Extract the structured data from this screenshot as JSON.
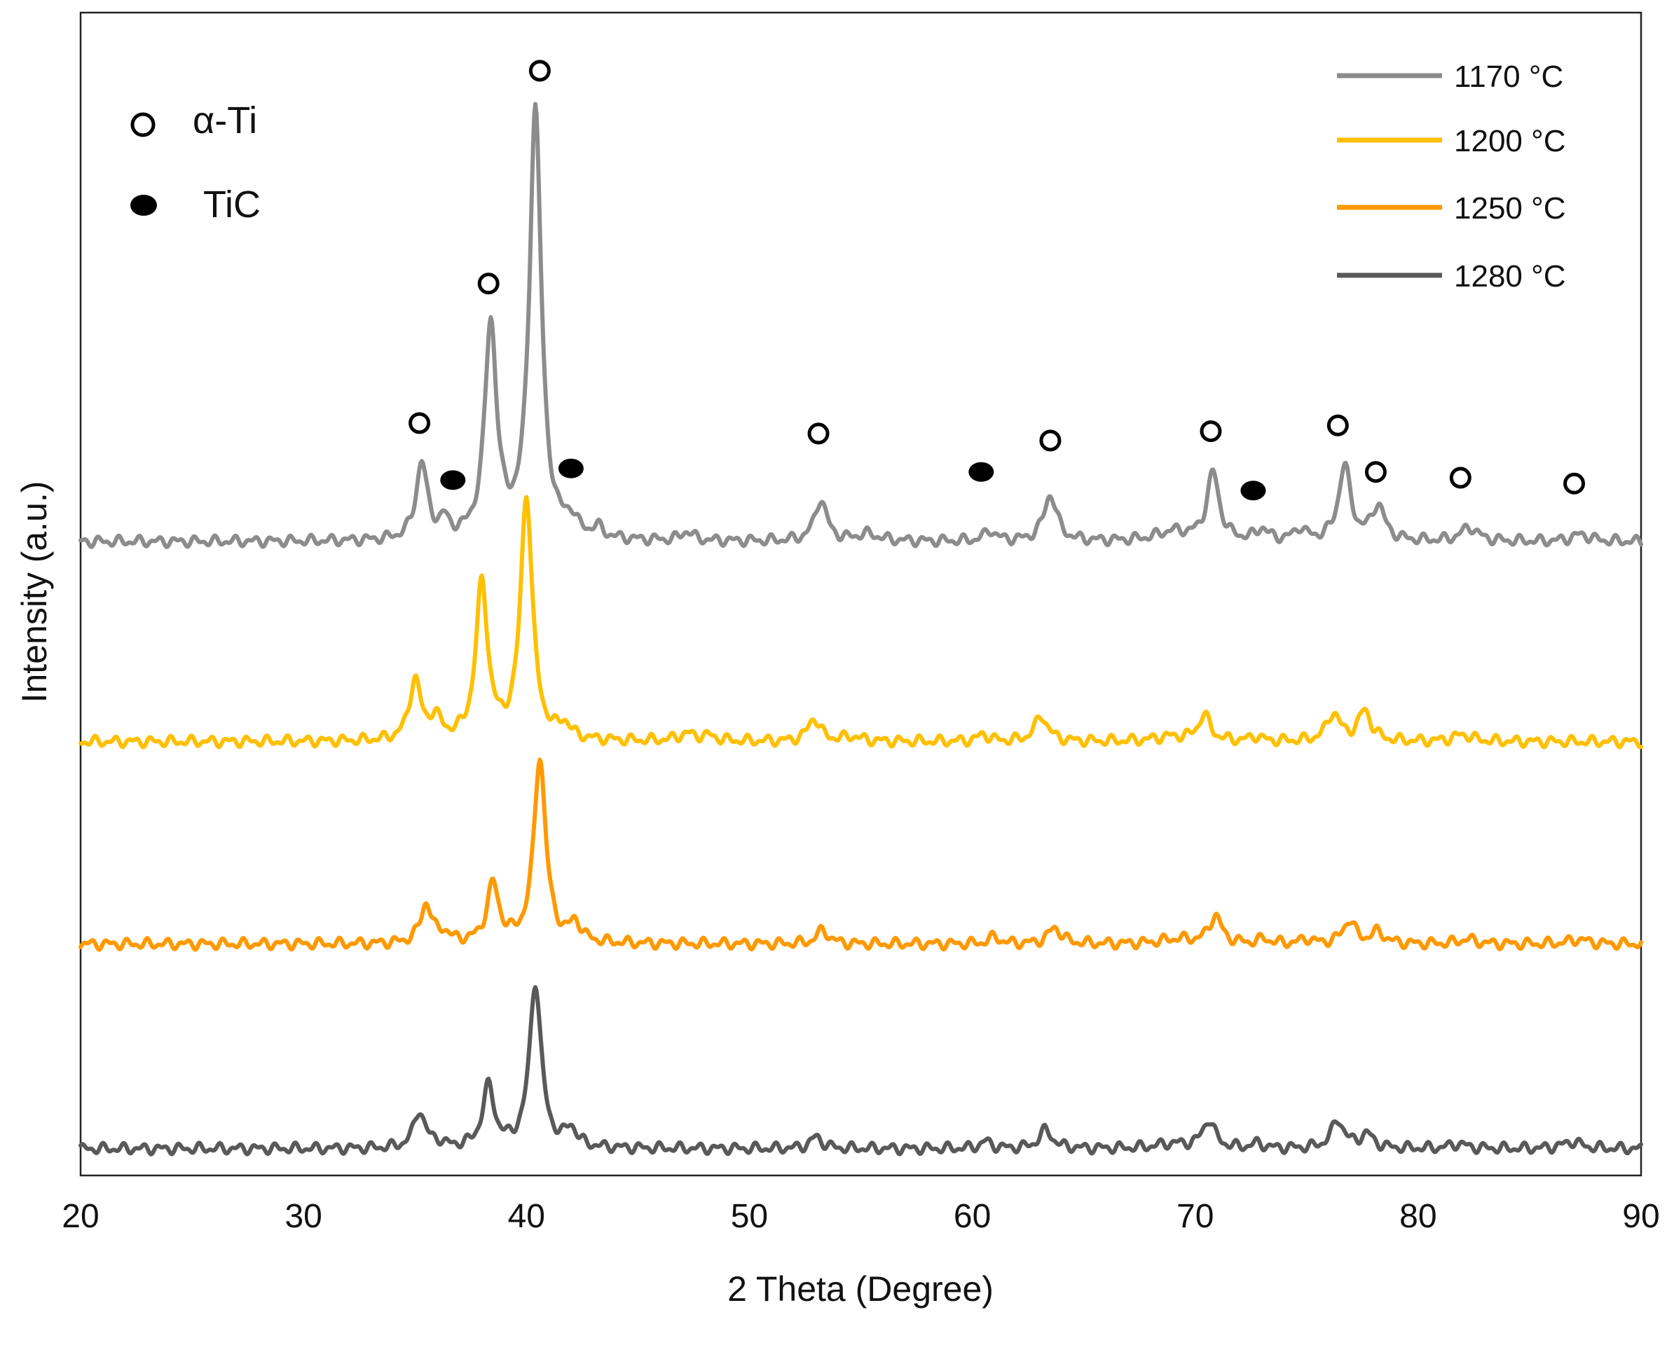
{
  "chart_data": {
    "type": "line",
    "title": "",
    "xlabel": "2  Theta (Degree)",
    "ylabel": "Intensity (a.u.)",
    "xlim": [
      20,
      90
    ],
    "xticks": [
      "20",
      "30",
      "40",
      "50",
      "60",
      "70",
      "80",
      "90"
    ],
    "ylim": [
      0,
      1000
    ],
    "grid": false,
    "legend_position": "top-right",
    "series": [
      {
        "name": "1170 °C",
        "color": "#8c8c8c",
        "offset": 545,
        "peaks": [
          [
            35.3,
            66,
            0.3
          ],
          [
            36.3,
            14,
            0.25
          ],
          [
            38.4,
            184,
            0.32
          ],
          [
            40.4,
            370,
            0.32
          ],
          [
            42.0,
            14,
            0.3
          ],
          [
            43.2,
            8,
            0.3
          ],
          [
            47.2,
            8,
            0.3
          ],
          [
            53.2,
            36,
            0.32
          ],
          [
            55.3,
            6,
            0.6
          ],
          [
            60.8,
            9,
            0.3
          ],
          [
            63.5,
            40,
            0.35
          ],
          [
            69.0,
            8,
            0.9
          ],
          [
            70.8,
            58,
            0.33
          ],
          [
            73.0,
            10,
            0.3
          ],
          [
            74.7,
            10,
            0.3
          ],
          [
            76.7,
            64,
            0.33
          ],
          [
            78.2,
            30,
            0.35
          ],
          [
            82.3,
            12,
            0.45
          ],
          [
            87.3,
            6,
            0.5
          ]
        ]
      },
      {
        "name": "1200 °C",
        "color": "#ffc000",
        "offset": 373,
        "peaks": [
          [
            35.0,
            52,
            0.3
          ],
          [
            35.9,
            18,
            0.3
          ],
          [
            38.0,
            134,
            0.32
          ],
          [
            40.0,
            210,
            0.32
          ],
          [
            41.7,
            12,
            0.3
          ],
          [
            47.2,
            6,
            0.5
          ],
          [
            48.2,
            4,
            0.4
          ],
          [
            52.9,
            20,
            0.32
          ],
          [
            54.6,
            4,
            0.5
          ],
          [
            60.5,
            6,
            0.3
          ],
          [
            63.1,
            22,
            0.35
          ],
          [
            68.9,
            4,
            0.9
          ],
          [
            70.4,
            22,
            0.33
          ],
          [
            72.7,
            4,
            0.3
          ],
          [
            76.2,
            24,
            0.35
          ],
          [
            77.6,
            26,
            0.35
          ],
          [
            82.0,
            6,
            0.5
          ]
        ]
      },
      {
        "name": "1250 °C",
        "color": "#ff9900",
        "offset": 199,
        "peaks": [
          [
            35.5,
            34,
            0.3
          ],
          [
            36.3,
            8,
            0.3
          ],
          [
            38.5,
            50,
            0.32
          ],
          [
            40.6,
            160,
            0.32
          ],
          [
            42.2,
            16,
            0.3
          ],
          [
            53.3,
            12,
            0.32
          ],
          [
            61.0,
            6,
            0.3
          ],
          [
            63.7,
            14,
            0.35
          ],
          [
            69.2,
            4,
            0.9
          ],
          [
            70.9,
            24,
            0.33
          ],
          [
            73.1,
            4,
            0.3
          ],
          [
            75.0,
            4,
            0.3
          ],
          [
            76.9,
            20,
            0.33
          ],
          [
            78.2,
            10,
            0.35
          ],
          [
            82.2,
            4,
            0.45
          ],
          [
            87.2,
            4,
            0.5
          ]
        ]
      },
      {
        "name": "1280 °C",
        "color": "#595959",
        "offset": 23,
        "peaks": [
          [
            35.2,
            32,
            0.3
          ],
          [
            36.0,
            4,
            0.3
          ],
          [
            38.3,
            52,
            0.32
          ],
          [
            40.4,
            142,
            0.32
          ],
          [
            42.0,
            16,
            0.3
          ],
          [
            53.0,
            10,
            0.32
          ],
          [
            60.6,
            6,
            0.3
          ],
          [
            63.3,
            16,
            0.35
          ],
          [
            69.0,
            4,
            0.9
          ],
          [
            70.6,
            24,
            0.33
          ],
          [
            72.8,
            4,
            0.3
          ],
          [
            76.4,
            24,
            0.35
          ],
          [
            77.7,
            12,
            0.35
          ],
          [
            81.8,
            4,
            0.45
          ],
          [
            86.9,
            6,
            0.5
          ]
        ]
      }
    ],
    "phase_markers": [
      {
        "phase": "α-Ti",
        "symbol": "open-circle",
        "positions": [
          [
            35.2,
            647
          ],
          [
            38.3,
            767
          ],
          [
            40.6,
            950
          ],
          [
            53.1,
            638
          ],
          [
            63.5,
            632
          ],
          [
            70.7,
            640
          ],
          [
            76.4,
            645
          ],
          [
            78.1,
            605
          ],
          [
            81.9,
            600
          ],
          [
            87.0,
            595
          ]
        ]
      },
      {
        "phase": "TiC",
        "symbol": "filled-circle",
        "positions": [
          [
            36.7,
            598
          ],
          [
            42.0,
            608
          ],
          [
            60.4,
            605
          ],
          [
            72.6,
            589
          ]
        ]
      }
    ],
    "annotations": [
      {
        "text": "α-Ti",
        "symbol": "open-circle"
      },
      {
        "text": "TiC",
        "symbol": "filled-circle"
      }
    ]
  }
}
